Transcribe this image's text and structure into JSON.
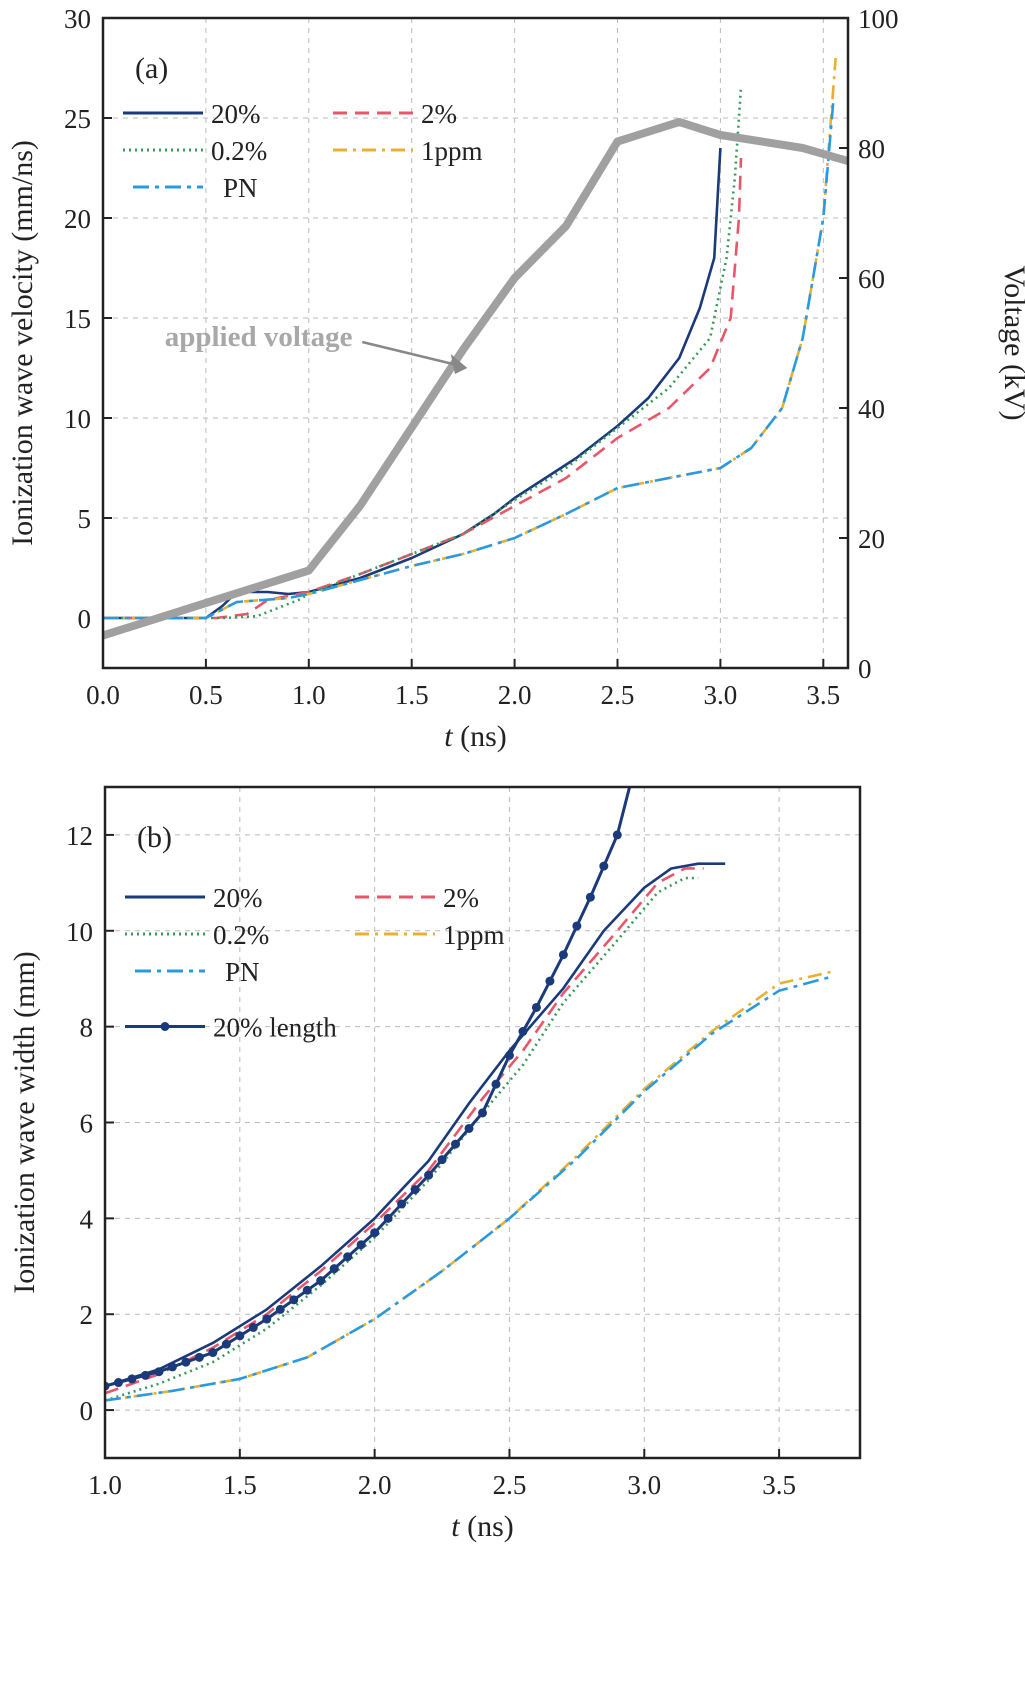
{
  "chart_data": [
    {
      "type": "line",
      "panel_label": "(a)",
      "xlabel_italic": "t",
      "xlabel_unit": " (ns)",
      "ylabel": "Ionization wave velocity (mm/ns)",
      "ylabel_right": "Voltage (kV)",
      "xlim": [
        0,
        3.62
      ],
      "ylim": [
        -2.5,
        30
      ],
      "ylim_right": [
        0,
        100
      ],
      "xticks": [
        "0.0",
        "0.5",
        "1.0",
        "1.5",
        "2.0",
        "2.5",
        "3.0",
        "3.5"
      ],
      "yticks": [
        "0",
        "5",
        "10",
        "15",
        "20",
        "25",
        "30"
      ],
      "yticks_right": [
        "0",
        "20",
        "40",
        "60",
        "80",
        "100"
      ],
      "grid": true,
      "legend_placement": "top-left",
      "annotation": "applied voltage",
      "series": [
        {
          "name": "20%",
          "color": "#1a3a7a",
          "style": "solid",
          "x": [
            0,
            0.5,
            0.58,
            0.65,
            0.8,
            0.9,
            1.0,
            1.25,
            1.5,
            1.75,
            1.9,
            2.0,
            2.15,
            2.3,
            2.5,
            2.65,
            2.8,
            2.9,
            2.97,
            3.0
          ],
          "y": [
            0,
            0,
            0.6,
            1.3,
            1.3,
            1.2,
            1.3,
            2,
            3,
            4.2,
            5.2,
            6,
            7,
            8,
            9.6,
            11,
            13,
            15.5,
            18,
            23.5
          ]
        },
        {
          "name": "2%",
          "color": "#e8566a",
          "style": "dashed",
          "x": [
            0,
            0.55,
            0.7,
            0.8,
            1.0,
            1.25,
            1.5,
            1.75,
            2.0,
            2.25,
            2.5,
            2.75,
            2.95,
            3.05,
            3.09,
            3.1
          ],
          "y": [
            0,
            0,
            0.2,
            0.9,
            1.3,
            2.2,
            3.2,
            4.2,
            5.6,
            7,
            9,
            10.5,
            12.5,
            15,
            20,
            23
          ]
        },
        {
          "name": "0.2%",
          "color": "#3a9a5a",
          "style": "dotted",
          "x": [
            0,
            0.6,
            0.75,
            0.95,
            1.0,
            1.25,
            1.5,
            1.75,
            2.0,
            2.25,
            2.5,
            2.75,
            2.95,
            3.03,
            3.07,
            3.1
          ],
          "y": [
            0,
            0,
            0.1,
            0.9,
            1.2,
            2.2,
            3.2,
            4.2,
            5.9,
            7.5,
            9.5,
            11.5,
            14,
            18,
            22,
            26.5
          ]
        },
        {
          "name": "1ppm",
          "color": "#e8b030",
          "style": "dashdot",
          "x": [
            0,
            0.5,
            0.65,
            0.9,
            1.0,
            1.25,
            1.5,
            1.75,
            2.0,
            2.25,
            2.5,
            2.75,
            3.0,
            3.15,
            3.3,
            3.4,
            3.5,
            3.56
          ],
          "y": [
            0,
            0,
            0.8,
            1.0,
            1.2,
            1.9,
            2.6,
            3.2,
            4,
            5.2,
            6.5,
            7,
            7.5,
            8.5,
            10.5,
            14,
            20,
            28
          ]
        },
        {
          "name": "PN",
          "color": "#2a9ae0",
          "style": "dashdot2",
          "x": [
            0,
            0.5,
            0.65,
            0.9,
            1.0,
            1.25,
            1.5,
            1.75,
            2.0,
            2.25,
            2.5,
            2.75,
            3.0,
            3.15,
            3.3,
            3.4,
            3.5,
            3.55
          ],
          "y": [
            0,
            0,
            0.8,
            1.0,
            1.2,
            1.9,
            2.6,
            3.2,
            4,
            5.2,
            6.5,
            7,
            7.5,
            8.5,
            10.5,
            14,
            20,
            26
          ]
        },
        {
          "name": "applied voltage",
          "color": "#a0a0a0",
          "style": "thick",
          "axis": "right",
          "x": [
            0,
            0.5,
            1.0,
            1.25,
            1.5,
            1.75,
            2.0,
            2.25,
            2.5,
            2.8,
            3.0,
            3.4,
            3.62
          ],
          "y": [
            5,
            10,
            15,
            25,
            37,
            49,
            60,
            68,
            81,
            84,
            82,
            80,
            78
          ]
        }
      ]
    },
    {
      "type": "line",
      "panel_label": "(b)",
      "xlabel_italic": "t",
      "xlabel_unit": " (ns)",
      "ylabel": "Ionization wave width (mm)",
      "xlim": [
        1.0,
        3.8
      ],
      "ylim": [
        -1,
        13
      ],
      "xticks": [
        "1.0",
        "1.5",
        "2.0",
        "2.5",
        "3.0",
        "3.5"
      ],
      "yticks": [
        "0",
        "2",
        "4",
        "6",
        "8",
        "10",
        "12"
      ],
      "grid": true,
      "legend_placement": "top-left",
      "series": [
        {
          "name": "20%",
          "color": "#1a3a7a",
          "style": "solid",
          "x": [
            1.0,
            1.2,
            1.4,
            1.6,
            1.8,
            2.0,
            2.2,
            2.35,
            2.5,
            2.7,
            2.85,
            3.0,
            3.1,
            3.2,
            3.3
          ],
          "y": [
            0.5,
            0.85,
            1.4,
            2.1,
            3.0,
            4.0,
            5.2,
            6.4,
            7.5,
            8.8,
            10,
            10.9,
            11.3,
            11.4,
            11.4
          ]
        },
        {
          "name": "2%",
          "color": "#e8566a",
          "style": "dashed",
          "x": [
            1.0,
            1.2,
            1.4,
            1.6,
            1.8,
            2.0,
            2.2,
            2.4,
            2.55,
            2.7,
            2.9,
            3.05,
            3.15,
            3.22
          ],
          "y": [
            0.35,
            0.75,
            1.3,
            2.0,
            2.9,
            3.9,
            5,
            6.5,
            7.5,
            8.7,
            10,
            11,
            11.3,
            11.3
          ]
        },
        {
          "name": "0.2%",
          "color": "#3a9a5a",
          "style": "dotted",
          "x": [
            1.0,
            1.2,
            1.4,
            1.6,
            1.8,
            2.0,
            2.2,
            2.4,
            2.55,
            2.7,
            2.9,
            3.05,
            3.15,
            3.2
          ],
          "y": [
            0.2,
            0.55,
            1.0,
            1.7,
            2.6,
            3.6,
            4.8,
            6.2,
            7.2,
            8.5,
            9.8,
            10.8,
            11.1,
            11.1
          ]
        },
        {
          "name": "1ppm",
          "color": "#e8b030",
          "style": "dashdot",
          "x": [
            1.0,
            1.25,
            1.5,
            1.75,
            2.0,
            2.25,
            2.5,
            2.75,
            3.0,
            3.25,
            3.5,
            3.7
          ],
          "y": [
            0.2,
            0.4,
            0.65,
            1.1,
            1.9,
            2.9,
            4.0,
            5.3,
            6.7,
            7.9,
            8.9,
            9.15
          ]
        },
        {
          "name": "PN",
          "color": "#2a9ae0",
          "style": "dashdot2",
          "x": [
            1.0,
            1.25,
            1.5,
            1.75,
            2.0,
            2.25,
            2.5,
            2.75,
            3.0,
            3.25,
            3.5,
            3.7
          ],
          "y": [
            0.2,
            0.4,
            0.65,
            1.1,
            1.9,
            2.9,
            4.0,
            5.25,
            6.65,
            7.85,
            8.75,
            9.05
          ]
        },
        {
          "name": "20% length",
          "color": "#1a3a7a",
          "style": "markers",
          "x": [
            1.0,
            1.2,
            1.4,
            1.6,
            1.8,
            2.0,
            2.2,
            2.4,
            2.5,
            2.6,
            2.7,
            2.8,
            2.9,
            2.95
          ],
          "y": [
            0.5,
            0.8,
            1.2,
            1.9,
            2.7,
            3.7,
            4.9,
            6.2,
            7.4,
            8.4,
            9.5,
            10.7,
            12,
            13.1
          ]
        }
      ]
    }
  ]
}
